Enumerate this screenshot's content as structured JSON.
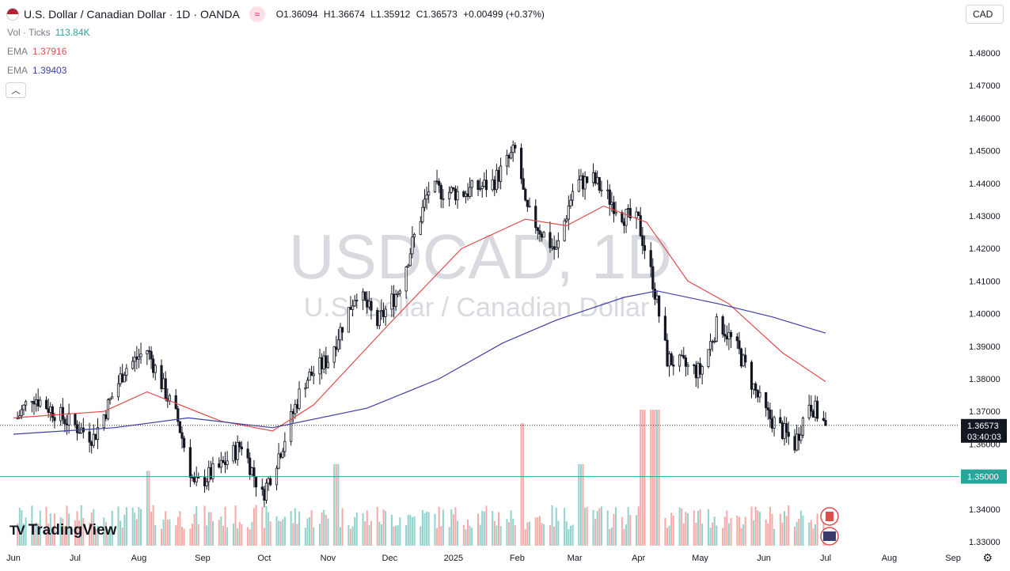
{
  "header": {
    "symbol_title": "U.S. Dollar / Canadian Dollar",
    "interval": "1D",
    "broker": "OANDA",
    "compare_icon": "≈",
    "open_label": "O",
    "open": "1.36094",
    "high_label": "H",
    "high": "1.36674",
    "low_label": "L",
    "low": "1.35912",
    "close_label": "C",
    "close": "1.36573",
    "change": "+0.00499 (+0.37%)"
  },
  "indicators": [
    {
      "label": "Vol · Ticks",
      "value": "113.84K",
      "color": "#26a69a"
    },
    {
      "label": "EMA",
      "value": "1.37916",
      "color": "#e04b4b"
    },
    {
      "label": "EMA",
      "value": "1.39403",
      "color": "#3f3ea6"
    }
  ],
  "toolbar": {
    "currency": "CAD",
    "collapse_icon": "chevron-up-icon"
  },
  "watermark": {
    "symbol": "USDCAD, 1D",
    "name": "U.S. Dollar / Canadian Dollar"
  },
  "branding": {
    "logo_text": "TradingView"
  },
  "price_scale": {
    "ticks": [
      "1.48000",
      "1.47000",
      "1.46000",
      "1.45000",
      "1.44000",
      "1.43000",
      "1.42000",
      "1.41000",
      "1.40000",
      "1.39000",
      "1.38000",
      "1.37000",
      "1.36000",
      "1.35000",
      "1.34000",
      "1.33000"
    ],
    "current_price": "1.36573",
    "countdown": "03:40:03",
    "level_label": "1.35000"
  },
  "time_axis": {
    "labels": [
      "Jun",
      "Jul",
      "Aug",
      "Sep",
      "Oct",
      "Nov",
      "Dec",
      "2025",
      "Feb",
      "Mar",
      "Apr",
      "May",
      "Jun",
      "Jul",
      "Aug",
      "Sep"
    ]
  },
  "colors": {
    "up": "#131722",
    "down": "#131722",
    "vol_up": "#26a69a",
    "vol_down": "#ef5350",
    "ema_fast": "#e04b4b",
    "ema_slow": "#3f3ea6",
    "hline": "#26a69a"
  },
  "chart_data": {
    "type": "candlestick",
    "title": "USDCAD, 1D",
    "subtitle": "U.S. Dollar / Canadian Dollar",
    "ylim": [
      1.33,
      1.48
    ],
    "x_range": [
      "2024-06-01",
      "2025-09-30"
    ],
    "horizontal_line": 1.35,
    "last_price": 1.36573,
    "ohlc_anchors": [
      {
        "date": "2024-06-01",
        "close": 1.366
      },
      {
        "date": "2024-06-10",
        "close": 1.375
      },
      {
        "date": "2024-06-25",
        "close": 1.368
      },
      {
        "date": "2024-07-10",
        "close": 1.362
      },
      {
        "date": "2024-07-25",
        "close": 1.383
      },
      {
        "date": "2024-08-05",
        "close": 1.389
      },
      {
        "date": "2024-08-20",
        "close": 1.367
      },
      {
        "date": "2024-08-28",
        "close": 1.347
      },
      {
        "date": "2024-09-10",
        "close": 1.353
      },
      {
        "date": "2024-09-20",
        "close": 1.36
      },
      {
        "date": "2024-09-30",
        "close": 1.344
      },
      {
        "date": "2024-10-10",
        "close": 1.36
      },
      {
        "date": "2024-10-20",
        "close": 1.379
      },
      {
        "date": "2024-11-01",
        "close": 1.386
      },
      {
        "date": "2024-11-15",
        "close": 1.407
      },
      {
        "date": "2024-11-25",
        "close": 1.397
      },
      {
        "date": "2024-12-05",
        "close": 1.407
      },
      {
        "date": "2024-12-20",
        "close": 1.438
      },
      {
        "date": "2025-01-05",
        "close": 1.437
      },
      {
        "date": "2025-01-20",
        "close": 1.44
      },
      {
        "date": "2025-02-01",
        "close": 1.451
      },
      {
        "date": "2025-02-05",
        "close": 1.432
      },
      {
        "date": "2025-02-20",
        "close": 1.419
      },
      {
        "date": "2025-03-01",
        "close": 1.44
      },
      {
        "date": "2025-03-10",
        "close": 1.441
      },
      {
        "date": "2025-03-25",
        "close": 1.43
      },
      {
        "date": "2025-04-01",
        "close": 1.428
      },
      {
        "date": "2025-04-08",
        "close": 1.41
      },
      {
        "date": "2025-04-15",
        "close": 1.386
      },
      {
        "date": "2025-05-01",
        "close": 1.382
      },
      {
        "date": "2025-05-10",
        "close": 1.398
      },
      {
        "date": "2025-05-20",
        "close": 1.388
      },
      {
        "date": "2025-06-01",
        "close": 1.37
      },
      {
        "date": "2025-06-16",
        "close": 1.36
      },
      {
        "date": "2025-06-23",
        "close": 1.373
      },
      {
        "date": "2025-07-01",
        "close": 1.36573
      }
    ],
    "series": [
      {
        "name": "EMA",
        "last": 1.37916,
        "points": [
          {
            "date": "2024-06-01",
            "value": 1.368
          },
          {
            "date": "2024-07-15",
            "value": 1.37
          },
          {
            "date": "2024-08-05",
            "value": 1.376
          },
          {
            "date": "2024-09-10",
            "value": 1.367
          },
          {
            "date": "2024-10-05",
            "value": 1.364
          },
          {
            "date": "2024-10-25",
            "value": 1.372
          },
          {
            "date": "2024-12-01",
            "value": 1.397
          },
          {
            "date": "2025-01-05",
            "value": 1.42
          },
          {
            "date": "2025-02-05",
            "value": 1.429
          },
          {
            "date": "2025-02-25",
            "value": 1.427
          },
          {
            "date": "2025-03-15",
            "value": 1.433
          },
          {
            "date": "2025-04-05",
            "value": 1.428
          },
          {
            "date": "2025-04-25",
            "value": 1.41
          },
          {
            "date": "2025-05-15",
            "value": 1.403
          },
          {
            "date": "2025-06-10",
            "value": 1.388
          },
          {
            "date": "2025-07-01",
            "value": 1.37916
          }
        ]
      },
      {
        "name": "EMA",
        "last": 1.39403,
        "points": [
          {
            "date": "2024-06-01",
            "value": 1.363
          },
          {
            "date": "2024-07-20",
            "value": 1.365
          },
          {
            "date": "2024-08-25",
            "value": 1.368
          },
          {
            "date": "2024-10-05",
            "value": 1.365
          },
          {
            "date": "2024-11-20",
            "value": 1.371
          },
          {
            "date": "2024-12-25",
            "value": 1.38
          },
          {
            "date": "2025-01-25",
            "value": 1.391
          },
          {
            "date": "2025-02-20",
            "value": 1.398
          },
          {
            "date": "2025-03-25",
            "value": 1.405
          },
          {
            "date": "2025-04-10",
            "value": 1.407
          },
          {
            "date": "2025-05-10",
            "value": 1.403
          },
          {
            "date": "2025-06-05",
            "value": 1.399
          },
          {
            "date": "2025-07-01",
            "value": 1.39403
          }
        ]
      }
    ],
    "volume_last": "113.84K",
    "volume_spikes": [
      {
        "date": "2024-08-05",
        "relative": 0.55
      },
      {
        "date": "2024-11-05",
        "relative": 0.6
      },
      {
        "date": "2025-02-03",
        "relative": 0.9
      },
      {
        "date": "2025-03-04",
        "relative": 0.6
      },
      {
        "date": "2025-04-03",
        "relative": 1.0
      },
      {
        "date": "2025-04-07",
        "relative": 1.0
      },
      {
        "date": "2025-04-10",
        "relative": 1.0
      }
    ]
  }
}
